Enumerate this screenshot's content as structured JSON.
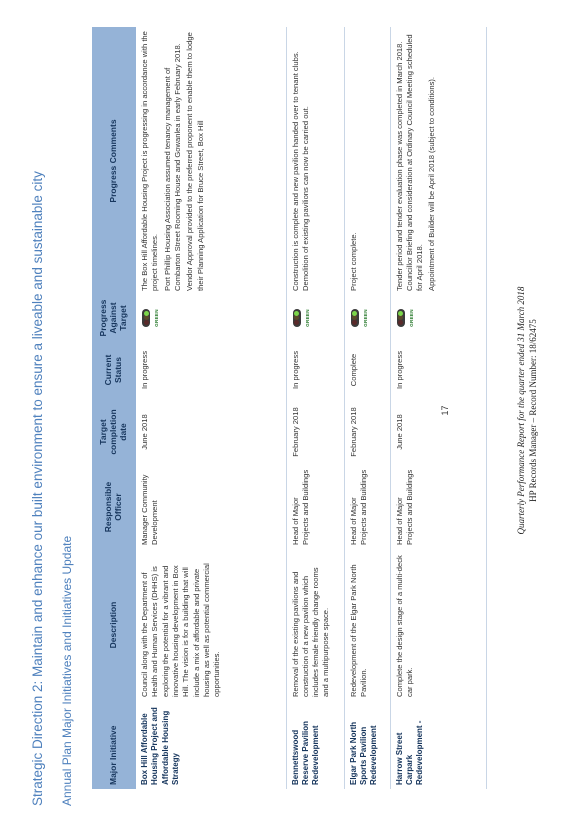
{
  "heading": "Strategic Direction 2: Maintain and enhance our built environment to ensure a liveable and sustainable city",
  "subheading": "Annual Plan Major Initiatives and Initiatives Update",
  "columns": [
    "Major Initiative",
    "Description",
    "Responsible Officer",
    "Target completion date",
    "Current Status",
    "Progress Against Target",
    "Progress Comments"
  ],
  "status_colors": {
    "green": "#7cd64a"
  },
  "rows": [
    {
      "initiative": "Box Hill Affordable Housing Project and Affordable Housing Strategy",
      "description": "Council along with the Department of Health and Human Services (DHHS) is exploring the potential for a vibrant and innovative housing development in Box Hill. The vision is for a building that will include a mix of affordable and private housing as well as potential commercial opportunities.",
      "officer": "Manager Community Development",
      "target": "June 2018",
      "status": "In progress",
      "progress_label": "GREEN",
      "comments": [
        "The Box Hill Affordable Housing Project is progressing in accordance with the project timelines.",
        "Port Phillip Housing Association assumed tenancy management of Combarton Street Rooming House and Gowanlea in early February 2018.",
        "Vendor Approval provided to the preferred proponent to enable them to lodge their Planning Application for Bruce Street, Box Hill"
      ]
    },
    {
      "initiative": "Bennettswood Reserve Pavilion Redevelopment",
      "description": "Removal of the existing pavilions and construction of a new pavilion which includes female friendly change rooms and a multipurpose space.",
      "officer": "Head of Major Projects and Buildings",
      "target": "February 2018",
      "status": "In progress",
      "progress_label": "GREEN",
      "comments": [
        "Construction is complete and new pavilion handed over to tenant clubs. Demolition of existing pavilions can now be carried out."
      ]
    },
    {
      "initiative": "Elgar Park North Sports Pavilion Redevelopment",
      "description": "Redevelopment of the Elgar Park North Pavilion.",
      "officer": "Head of Major Projects and Buildings",
      "target": "February 2018",
      "status": "Complete",
      "progress_label": "GREEN",
      "comments": [
        "Project complete."
      ]
    },
    {
      "initiative": "Harrow Street Carpark Redevelopment -",
      "description": "Complete the design stage of a multi-deck car park.",
      "officer": "Head of Major Projects and Buildings",
      "target": "June 2018",
      "status": "In progress",
      "progress_label": "GREEN",
      "comments": [
        "Tender period and tender evaluation phase was completed in March 2018. Councillor Briefing and consideration at Ordinary Council Meeting scheduled for April 2018.",
        "Appointment of Builder will be April 2018 (subject to conditions)."
      ]
    }
  ],
  "page_number": "17",
  "footer_line1": "Quarterly Performance Report for the quarter ended 31 March 2018",
  "footer_line2": "HP Records Manager – Record Number: 18/62475"
}
